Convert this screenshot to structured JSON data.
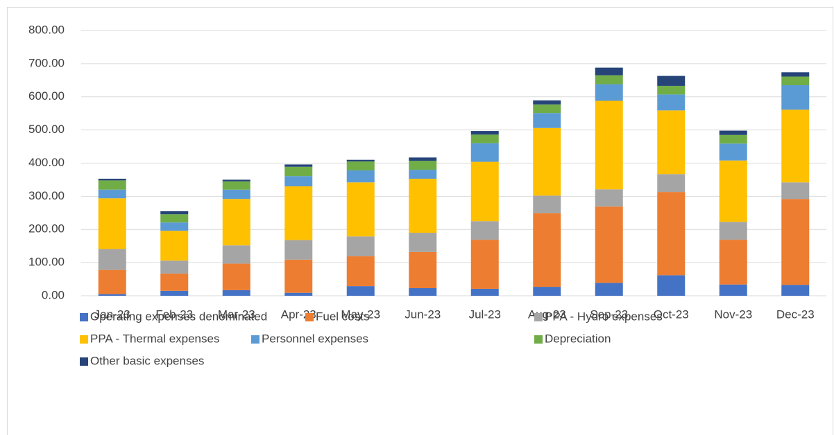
{
  "chart_data": {
    "type": "stacked_bar",
    "categories": [
      "Jan-23",
      "Feb-23",
      "Mar-23",
      "Apr-23",
      "May-23",
      "Jun-23",
      "Jul-23",
      "Aug-23",
      "Sep-23",
      "Oct-23",
      "Nov-23",
      "Dec-23"
    ],
    "series": [
      {
        "name": "Operating expenses denominated",
        "color": "#4472c4",
        "values": [
          5,
          15,
          17,
          9,
          29,
          23,
          21,
          27,
          39,
          62,
          34,
          33
        ]
      },
      {
        "name": "Fuel costs",
        "color": "#ed7d31",
        "values": [
          73,
          52,
          80,
          100,
          90,
          109,
          148,
          222,
          230,
          251,
          135,
          259
        ]
      },
      {
        "name": "PPA - Hydro expenses",
        "color": "#a5a5a5",
        "values": [
          63,
          39,
          55,
          59,
          60,
          58,
          56,
          53,
          52,
          54,
          54,
          50
        ]
      },
      {
        "name": "PPA - Thermal expenses",
        "color": "#ffc000",
        "values": [
          153,
          90,
          140,
          162,
          163,
          163,
          179,
          204,
          267,
          192,
          185,
          219
        ]
      },
      {
        "name": "Personnel expenses",
        "color": "#5b9bd5",
        "values": [
          26,
          25,
          28,
          31,
          36,
          27,
          56,
          45,
          50,
          48,
          51,
          74
        ]
      },
      {
        "name": "Depreciation",
        "color": "#70ad47",
        "values": [
          28,
          25,
          25,
          28,
          27,
          27,
          26,
          26,
          27,
          26,
          26,
          26
        ]
      },
      {
        "name": "Other basic expenses",
        "color": "#264478",
        "values": [
          5,
          9,
          5,
          7,
          5,
          10,
          11,
          12,
          23,
          30,
          13,
          13
        ]
      }
    ],
    "ylim": [
      0,
      800
    ],
    "yticks": [
      {
        "value": 0,
        "label": "0.00"
      },
      {
        "value": 100,
        "label": "100.00"
      },
      {
        "value": 200,
        "label": "200.00"
      },
      {
        "value": 300,
        "label": "300.00"
      },
      {
        "value": 400,
        "label": "400.00"
      },
      {
        "value": 500,
        "label": "500.00"
      },
      {
        "value": 600,
        "label": "600.00"
      },
      {
        "value": 700,
        "label": "700.00"
      },
      {
        "value": 800,
        "label": "800.00"
      }
    ],
    "grid": true,
    "legend": "bottom"
  }
}
